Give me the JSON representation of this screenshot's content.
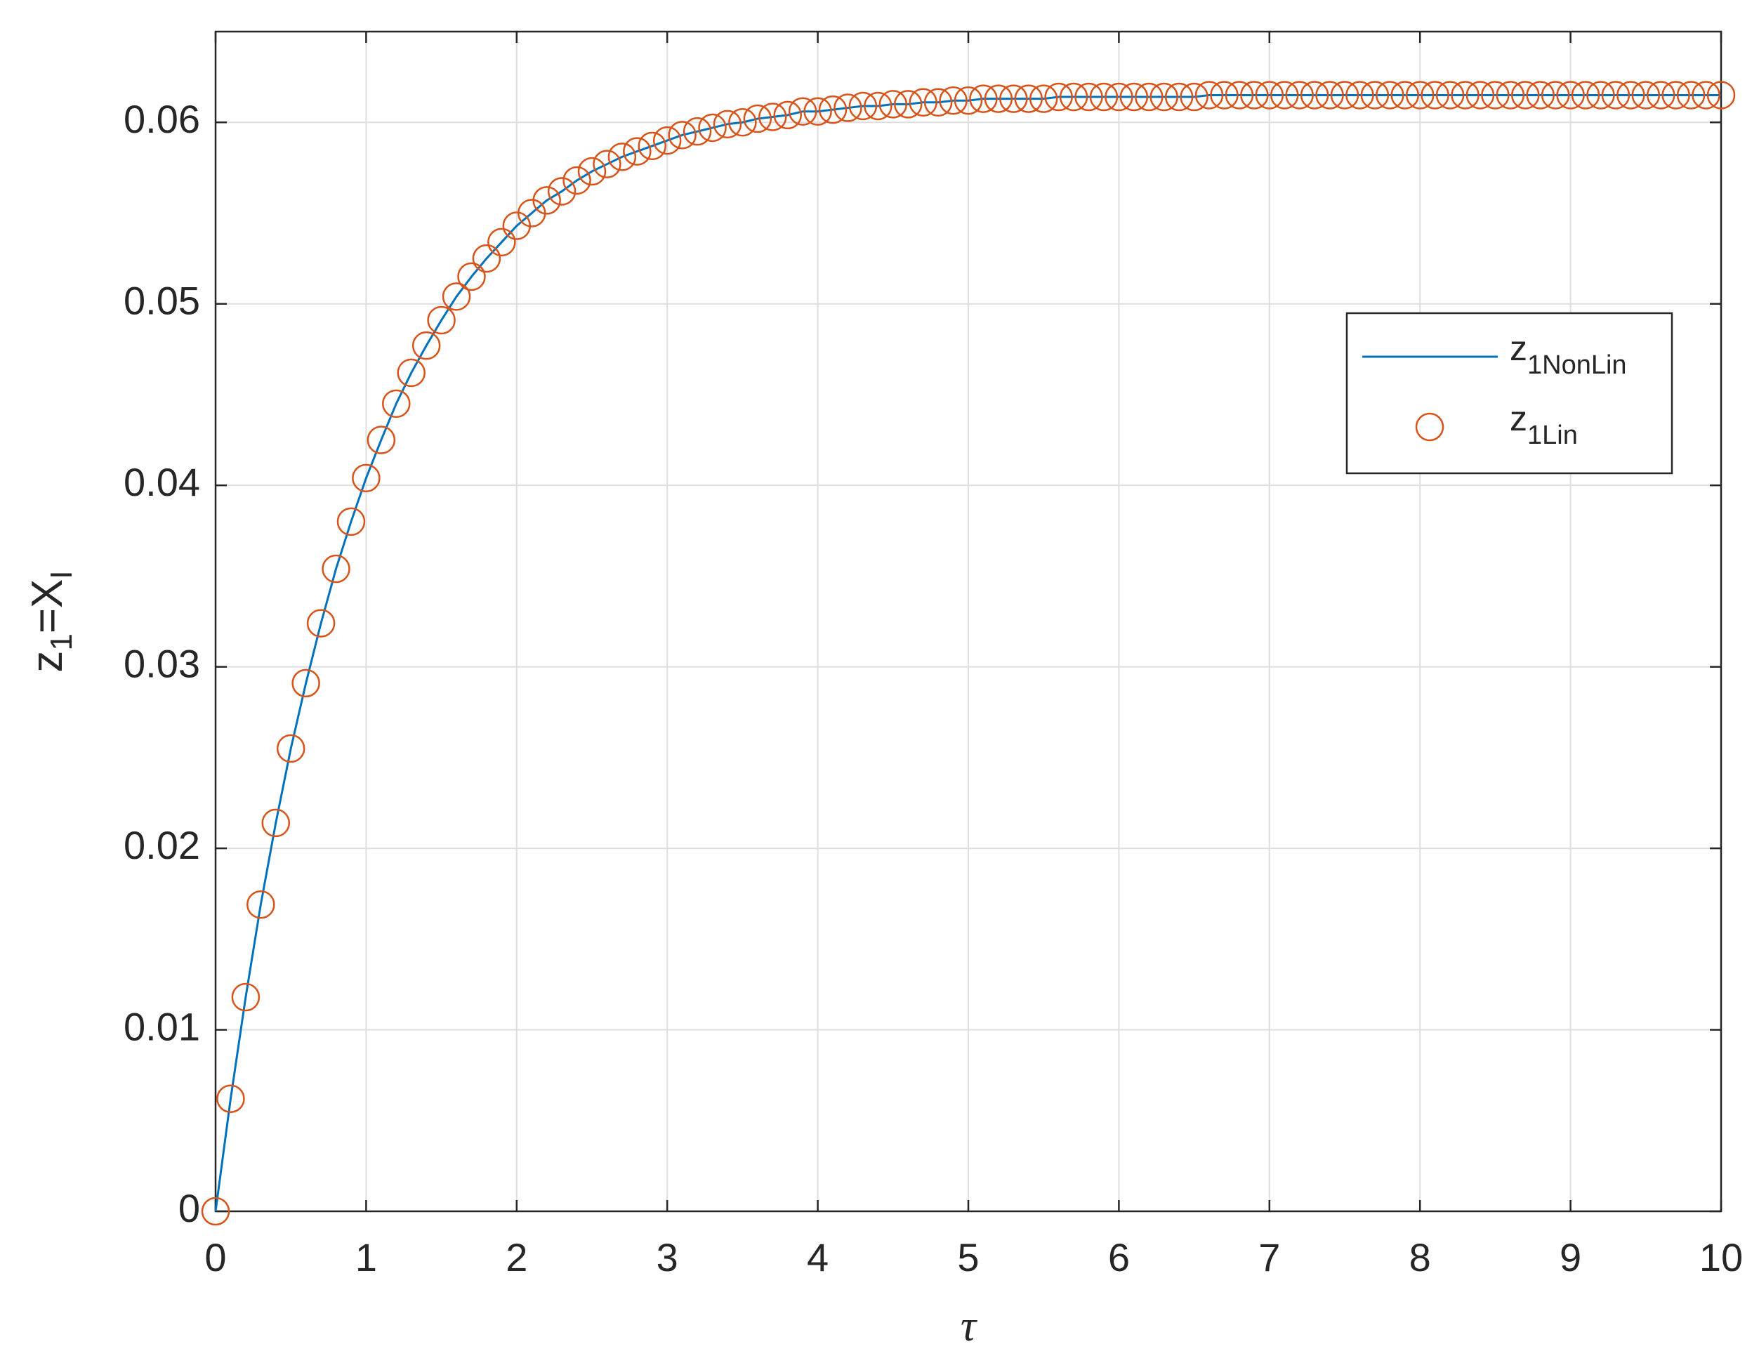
{
  "chart_data": {
    "type": "line",
    "xlabel": "τ",
    "ylabel": [
      {
        "text": "z"
      },
      {
        "sub": "1"
      },
      {
        "text": "=X"
      },
      {
        "sub": "I"
      }
    ],
    "x": [
      0,
      0.1,
      0.2,
      0.3,
      0.4,
      0.5,
      0.6,
      0.7,
      0.8,
      0.9,
      1,
      1.1,
      1.2,
      1.3,
      1.4,
      1.5,
      1.6,
      1.7,
      1.8,
      1.9,
      2,
      2.1,
      2.2,
      2.3,
      2.4,
      2.5,
      2.6,
      2.7,
      2.8,
      2.9,
      3,
      3.1,
      3.2,
      3.3,
      3.4,
      3.5,
      3.6,
      3.7,
      3.8,
      3.9,
      4,
      4.1,
      4.2,
      4.3,
      4.4,
      4.5,
      4.6,
      4.7,
      4.8,
      4.9,
      5,
      5.1,
      5.2,
      5.3,
      5.4,
      5.5,
      5.6,
      5.7,
      5.8,
      5.9,
      6,
      6.1,
      6.2,
      6.3,
      6.4,
      6.5,
      6.6,
      6.7,
      6.8,
      6.9,
      7,
      7.1,
      7.2,
      7.3,
      7.4,
      7.5,
      7.6,
      7.7,
      7.8,
      7.9,
      8,
      8.1,
      8.2,
      8.3,
      8.4,
      8.5,
      8.6,
      8.7,
      8.8,
      8.9,
      9,
      9.1,
      9.2,
      9.3,
      9.4,
      9.5,
      9.6,
      9.7,
      9.8,
      9.9,
      10
    ],
    "series": [
      {
        "name": "z1NonLin",
        "color": "#0072bd",
        "marker": "none",
        "values": [
          0,
          0.0062,
          0.0118,
          0.0169,
          0.0214,
          0.0255,
          0.0291,
          0.0324,
          0.0354,
          0.038,
          0.0404,
          0.0425,
          0.0445,
          0.0462,
          0.0477,
          0.0491,
          0.0504,
          0.0515,
          0.0525,
          0.0534,
          0.0543,
          0.055,
          0.0557,
          0.0562,
          0.0568,
          0.0573,
          0.0577,
          0.0581,
          0.0584,
          0.0587,
          0.059,
          0.0593,
          0.0595,
          0.0597,
          0.0599,
          0.06,
          0.0602,
          0.0603,
          0.0604,
          0.0606,
          0.0606,
          0.0607,
          0.0608,
          0.0609,
          0.0609,
          0.061,
          0.061,
          0.0611,
          0.0611,
          0.0612,
          0.0612,
          0.0613,
          0.0613,
          0.0613,
          0.0613,
          0.0613,
          0.0614,
          0.0614,
          0.0614,
          0.0614,
          0.0614,
          0.0614,
          0.0614,
          0.0614,
          0.0614,
          0.0614,
          0.0615,
          0.0615,
          0.0615,
          0.0615,
          0.0615,
          0.0615,
          0.0615,
          0.0615,
          0.0615,
          0.0615,
          0.0615,
          0.0615,
          0.0615,
          0.0615,
          0.0615,
          0.0615,
          0.0615,
          0.0615,
          0.0615,
          0.0615,
          0.0615,
          0.0615,
          0.0615,
          0.0615,
          0.0615,
          0.0615,
          0.0615,
          0.0615,
          0.0615,
          0.0615,
          0.0615,
          0.0615,
          0.0615,
          0.0615,
          0.0615
        ]
      },
      {
        "name": "z1Lin",
        "color": "#d95319",
        "marker": "circle",
        "values": [
          0,
          0.0062,
          0.0118,
          0.0169,
          0.0214,
          0.0255,
          0.0291,
          0.0324,
          0.0354,
          0.038,
          0.0404,
          0.0425,
          0.0445,
          0.0462,
          0.0477,
          0.0491,
          0.0504,
          0.0515,
          0.0525,
          0.0534,
          0.0543,
          0.055,
          0.0557,
          0.0562,
          0.0568,
          0.0573,
          0.0577,
          0.0581,
          0.0584,
          0.0587,
          0.059,
          0.0593,
          0.0595,
          0.0597,
          0.0599,
          0.06,
          0.0602,
          0.0603,
          0.0604,
          0.0606,
          0.0606,
          0.0607,
          0.0608,
          0.0609,
          0.0609,
          0.061,
          0.061,
          0.0611,
          0.0611,
          0.0612,
          0.0612,
          0.0613,
          0.0613,
          0.0613,
          0.0613,
          0.0613,
          0.0614,
          0.0614,
          0.0614,
          0.0614,
          0.0614,
          0.0614,
          0.0614,
          0.0614,
          0.0614,
          0.0614,
          0.0615,
          0.0615,
          0.0615,
          0.0615,
          0.0615,
          0.0615,
          0.0615,
          0.0615,
          0.0615,
          0.0615,
          0.0615,
          0.0615,
          0.0615,
          0.0615,
          0.0615,
          0.0615,
          0.0615,
          0.0615,
          0.0615,
          0.0615,
          0.0615,
          0.0615,
          0.0615,
          0.0615,
          0.0615,
          0.0615,
          0.0615,
          0.0615,
          0.0615,
          0.0615,
          0.0615,
          0.0615,
          0.0615,
          0.0615,
          0.0615
        ]
      }
    ],
    "xlim": [
      0,
      10
    ],
    "xticks": [
      0,
      1,
      2,
      3,
      4,
      5,
      6,
      7,
      8,
      9,
      10
    ],
    "ylim": [
      0,
      0.065
    ],
    "yticks": [
      0,
      0.01,
      0.02,
      0.03,
      0.04,
      0.05,
      0.06
    ],
    "grid": true,
    "legend": "northeast"
  }
}
